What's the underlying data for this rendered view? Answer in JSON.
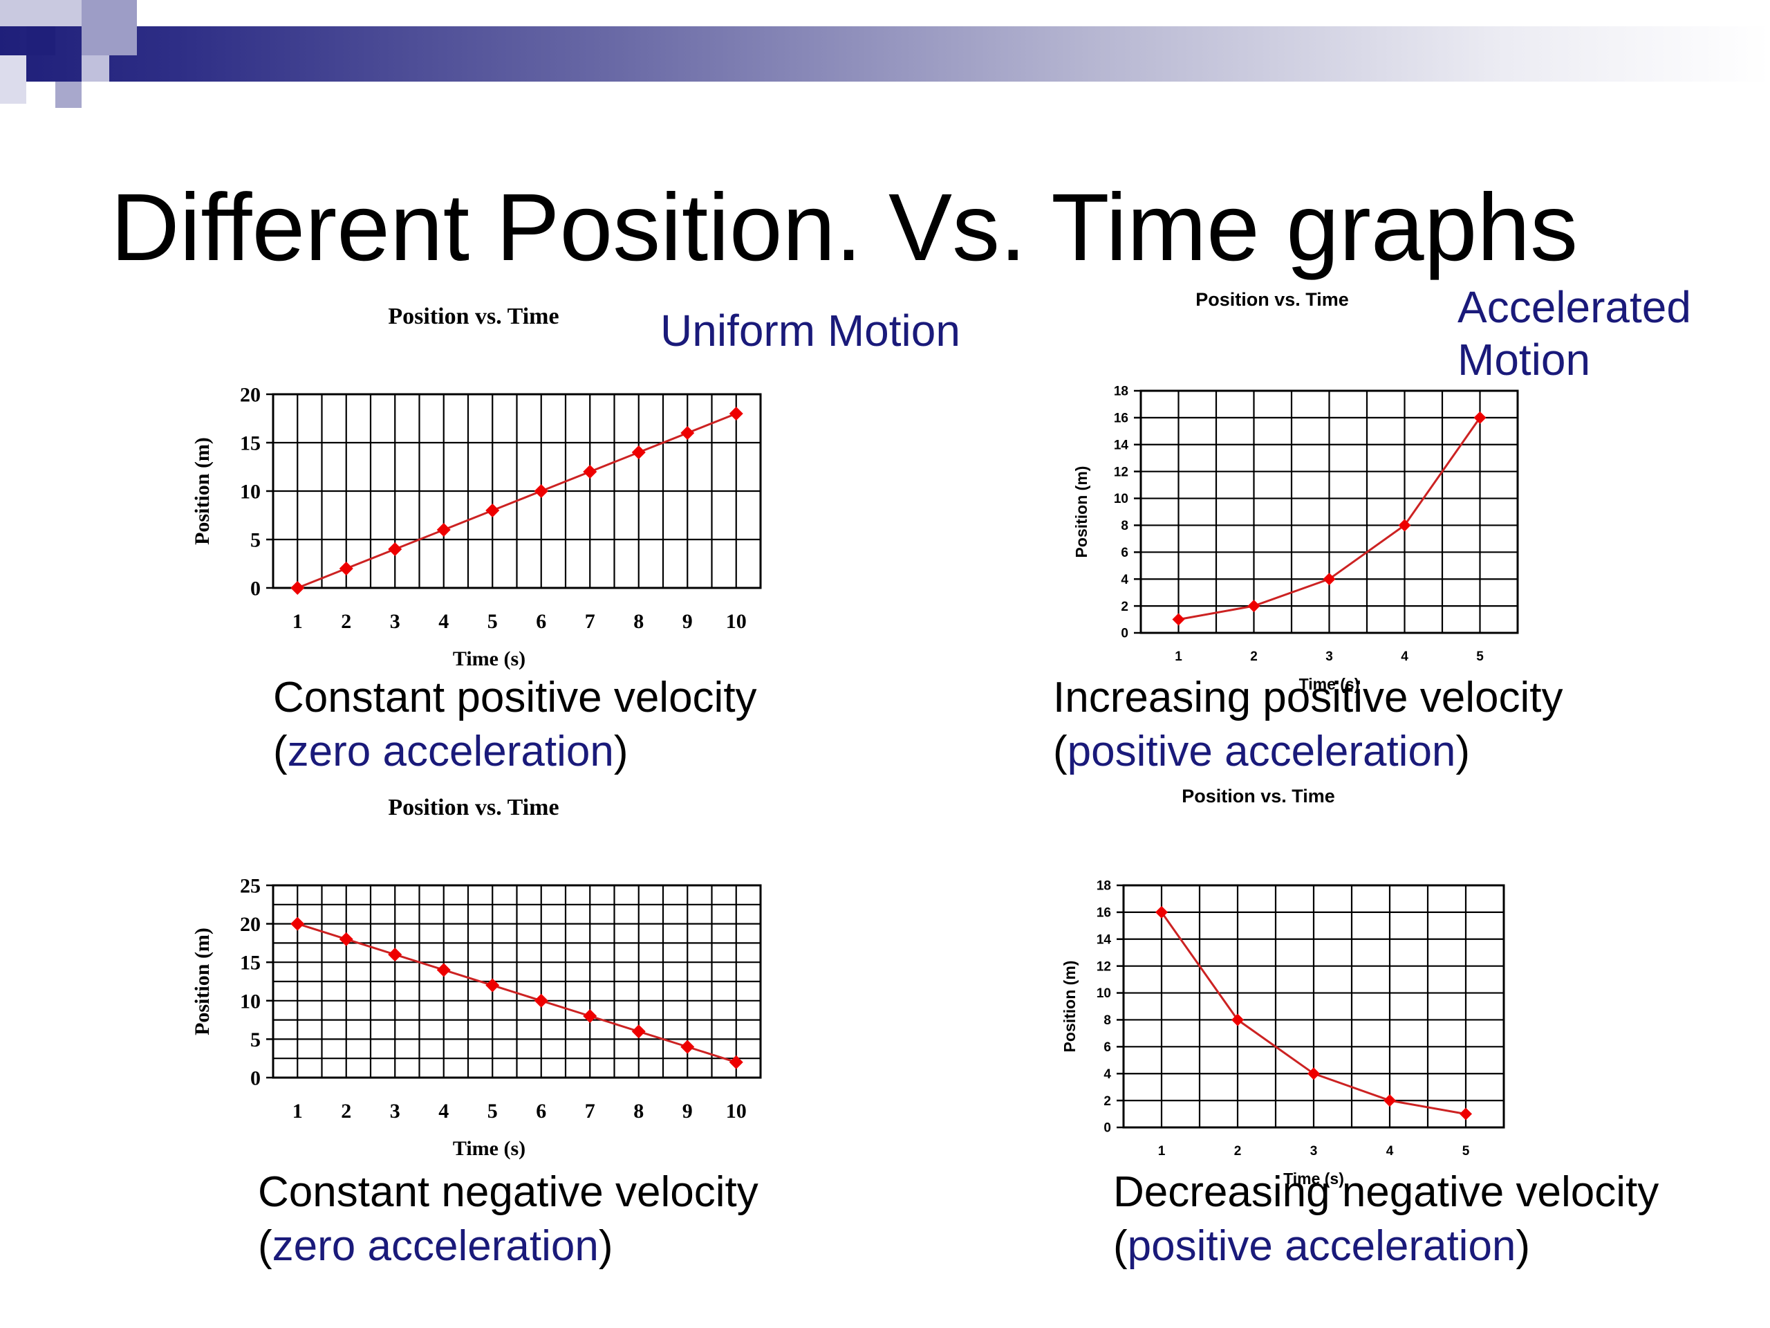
{
  "slide": {
    "title": "Different Position. Vs. Time graphs",
    "labels": {
      "uniform_motion": "Uniform Motion",
      "accelerated_line1": "Accelerated",
      "accelerated_line2": "Motion"
    },
    "colors": {
      "header_dark": "#1f1f7a",
      "header_light": "#ffffff",
      "accent_blue": "#1a1a7a",
      "line_red": "#cc2222",
      "marker_red": "#ee0000"
    }
  },
  "captions": [
    {
      "line1": "Constant positive velocity",
      "open": "(",
      "accel": "zero acceleration",
      "close": ")"
    },
    {
      "line1": "Increasing positive velocity",
      "open": "(",
      "accel": "positive acceleration",
      "close": ")"
    },
    {
      "line1": "Constant negative velocity",
      "open": "(",
      "accel": "zero acceleration",
      "close": ")"
    },
    {
      "line1": "Decreasing negative velocity",
      "open": "(",
      "accel": "positive acceleration",
      "close": ")"
    }
  ],
  "chart_data": [
    {
      "type": "line",
      "title": "Position vs. Time",
      "xlabel": "Time (s)",
      "ylabel": "Position (m)",
      "categories": [
        "1",
        "2",
        "3",
        "4",
        "5",
        "6",
        "7",
        "8",
        "9",
        "10"
      ],
      "values": [
        0,
        2,
        4,
        6,
        8,
        10,
        12,
        14,
        16,
        18
      ],
      "ylim": [
        0,
        20
      ],
      "yticks": [
        0,
        5,
        10,
        15,
        20
      ],
      "grid": true
    },
    {
      "type": "line",
      "title": "Position vs. Time",
      "xlabel": "Time (s)",
      "ylabel": "Position (m)",
      "categories": [
        "1",
        "2",
        "3",
        "4",
        "5"
      ],
      "values": [
        1,
        2,
        4,
        8,
        16
      ],
      "ylim": [
        0,
        18
      ],
      "yticks": [
        0,
        2,
        4,
        6,
        8,
        10,
        12,
        14,
        16,
        18
      ],
      "grid": true
    },
    {
      "type": "line",
      "title": "Position vs. Time",
      "xlabel": "Time (s)",
      "ylabel": "Position (m)",
      "categories": [
        "1",
        "2",
        "3",
        "4",
        "5",
        "6",
        "7",
        "8",
        "9",
        "10"
      ],
      "values": [
        20,
        18,
        16,
        14,
        12,
        10,
        8,
        6,
        4,
        2
      ],
      "ylim": [
        0,
        25
      ],
      "yticks": [
        0,
        5,
        10,
        15,
        20,
        25
      ],
      "grid": true
    },
    {
      "type": "line",
      "title": "Position vs. Time",
      "xlabel": "Time (s)",
      "ylabel": "Position (m)",
      "categories": [
        "1",
        "2",
        "3",
        "4",
        "5"
      ],
      "values": [
        16,
        8,
        4,
        2,
        1
      ],
      "ylim": [
        0,
        18
      ],
      "yticks": [
        0,
        2,
        4,
        6,
        8,
        10,
        12,
        14,
        16,
        18
      ],
      "grid": true
    }
  ]
}
